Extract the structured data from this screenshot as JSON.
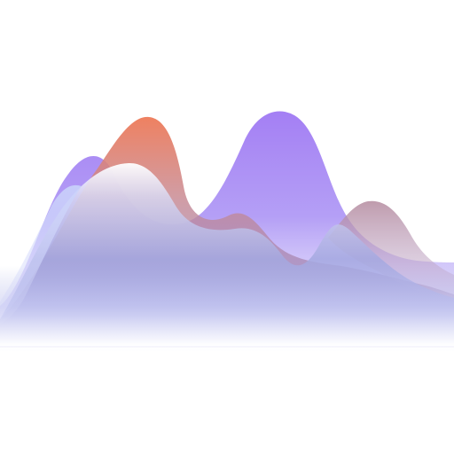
{
  "artwork": {
    "subject": "layered-wave-mountains",
    "colors": {
      "violet": "#9b7cf2",
      "violet_light": "#b7a4f6",
      "coral": "#e87e62",
      "mauve": "#b28aa7",
      "periwinkle": "#b9c3f2",
      "haze": "#d9defa",
      "background": "#ffffff"
    }
  }
}
